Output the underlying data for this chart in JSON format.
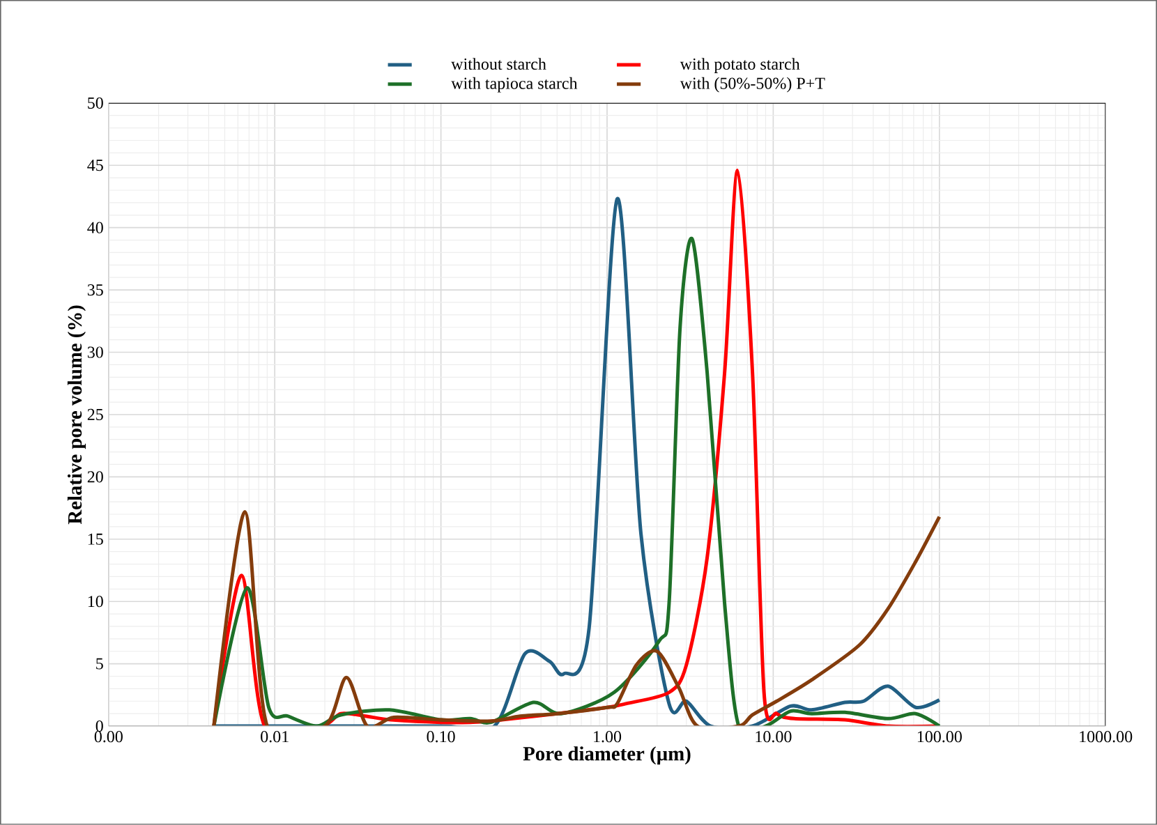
{
  "chart_data": {
    "type": "line",
    "xlabel": "Pore diameter  (µm)",
    "ylabel": "Relative pore volume (%)",
    "log": "x",
    "grid": true,
    "legend": "top",
    "marker": "none",
    "line_style": "solid",
    "xlim": [
      0.001,
      1000
    ],
    "ylim": [
      0,
      50
    ],
    "xticks": [
      {
        "value": 0.001,
        "label": "0.00"
      },
      {
        "value": 0.01,
        "label": "0.01"
      },
      {
        "value": 0.1,
        "label": "0.10"
      },
      {
        "value": 1,
        "label": "1.00"
      },
      {
        "value": 10,
        "label": "10.00"
      },
      {
        "value": 100,
        "label": "100.00"
      },
      {
        "value": 1000,
        "label": "1000.00"
      }
    ],
    "yticks": [
      0,
      5,
      10,
      15,
      20,
      25,
      30,
      35,
      40,
      45,
      50
    ],
    "series": [
      {
        "name": "without starch",
        "color": "#215f84",
        "x": [
          0.0043,
          0.01,
          0.1,
          0.21,
          0.32,
          0.45,
          0.55,
          0.78,
          1.15,
          1.6,
          2.36,
          3.0,
          4.2,
          7.5,
          12.7,
          17,
          27,
          35,
          49,
          72,
          100
        ],
        "values": [
          0,
          0,
          0,
          0,
          5.8,
          5.2,
          4.2,
          7.9,
          42.3,
          15.4,
          1.8,
          2.0,
          0,
          0,
          1.6,
          1.3,
          1.9,
          2.0,
          3.2,
          1.5,
          2.1
        ]
      },
      {
        "name": "with potato starch",
        "color": "#ff0000",
        "x": [
          0.0043,
          0.0063,
          0.0087,
          0.019,
          0.025,
          0.035,
          0.05,
          0.1,
          0.15,
          0.2,
          0.5,
          1.0,
          1.3,
          2.36,
          3.0,
          4.0,
          5.1,
          6.1,
          7.5,
          8.8,
          10.5,
          13.4,
          27,
          49,
          100
        ],
        "values": [
          0,
          12.1,
          0,
          0,
          1.0,
          0.8,
          0.5,
          0.3,
          0.3,
          0.4,
          1.0,
          1.5,
          1.8,
          2.7,
          4.9,
          13.5,
          28.4,
          44.6,
          28.4,
          2.7,
          1.0,
          0.6,
          0.5,
          0,
          0
        ]
      },
      {
        "name": "with tapioca starch",
        "color": "#1e7028",
        "x": [
          0.0043,
          0.0068,
          0.0092,
          0.012,
          0.018,
          0.025,
          0.049,
          0.1,
          0.15,
          0.2,
          0.36,
          0.53,
          1.1,
          2.05,
          2.36,
          2.75,
          3.25,
          4.0,
          5.1,
          6.2,
          9,
          12.7,
          17,
          27,
          49,
          72,
          100
        ],
        "values": [
          0,
          11.1,
          1.5,
          0.8,
          0,
          0.9,
          1.3,
          0.5,
          0.6,
          0.3,
          1.9,
          1.0,
          2.7,
          6.8,
          9.8,
          32,
          39.1,
          28.4,
          9.8,
          0,
          0,
          1.2,
          1.0,
          1.1,
          0.6,
          1.0,
          0
        ]
      },
      {
        "name": "with (50%-50%) P+T",
        "color": "#843c0c",
        "x": [
          0.0043,
          0.0066,
          0.009,
          0.02,
          0.027,
          0.036,
          0.052,
          0.1,
          0.2,
          0.3,
          0.5,
          1.0,
          1.15,
          1.5,
          2.0,
          2.7,
          3.5,
          6.2,
          7.5,
          10.5,
          17,
          33,
          49,
          72,
          100
        ],
        "values": [
          0,
          17.2,
          0,
          0,
          3.9,
          0,
          0.7,
          0.5,
          0.4,
          0.8,
          1.0,
          1.5,
          1.8,
          4.9,
          6.0,
          3.1,
          0,
          0,
          0.9,
          2.0,
          3.7,
          6.5,
          9.4,
          13.2,
          16.8
        ]
      }
    ]
  }
}
